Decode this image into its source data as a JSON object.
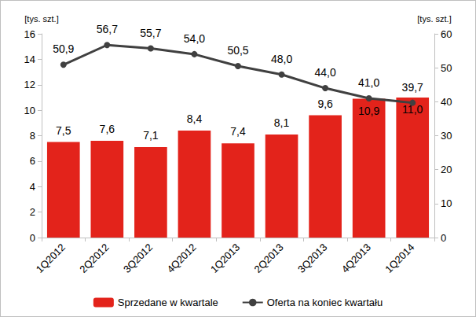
{
  "chart_data": {
    "type": "bar",
    "categories": [
      "1Q2012",
      "2Q2012",
      "3Q2012",
      "4Q2012",
      "1Q2013",
      "2Q2013",
      "3Q2013",
      "4Q2013",
      "1Q2014"
    ],
    "series": [
      {
        "name": "Sprzedane w kwartale",
        "type": "bar",
        "color": "#e3231b",
        "values": [
          7.5,
          7.6,
          7.1,
          8.4,
          7.4,
          8.1,
          9.6,
          10.9,
          11.0
        ],
        "value_labels": [
          "7,5",
          "7,6",
          "7,1",
          "8,4",
          "7,4",
          "8,1",
          "9,6",
          "10,9",
          "11,0"
        ]
      },
      {
        "name": "Oferta na koniec kwartału",
        "type": "line",
        "axis": "y2",
        "color": "#404040",
        "marker": "circle",
        "values": [
          50.9,
          56.7,
          55.7,
          54.0,
          50.5,
          48.0,
          44.0,
          41.0,
          39.7
        ],
        "value_labels": [
          "50,9",
          "56,7",
          "55,7",
          "54,0",
          "50,5",
          "48,0",
          "44,0",
          "41,0",
          "39,7"
        ]
      }
    ],
    "y_label": "[tys. szt.]",
    "y2_label": "[tys. szt.]",
    "ylim": [
      0,
      16
    ],
    "yticks": [
      0,
      2,
      4,
      6,
      8,
      10,
      12,
      14,
      16
    ],
    "y2lim": [
      0,
      60
    ],
    "y2ticks": [
      0,
      10,
      20,
      30,
      40,
      50,
      60
    ],
    "data_labels": true,
    "legend": "bottom",
    "grid": false
  }
}
